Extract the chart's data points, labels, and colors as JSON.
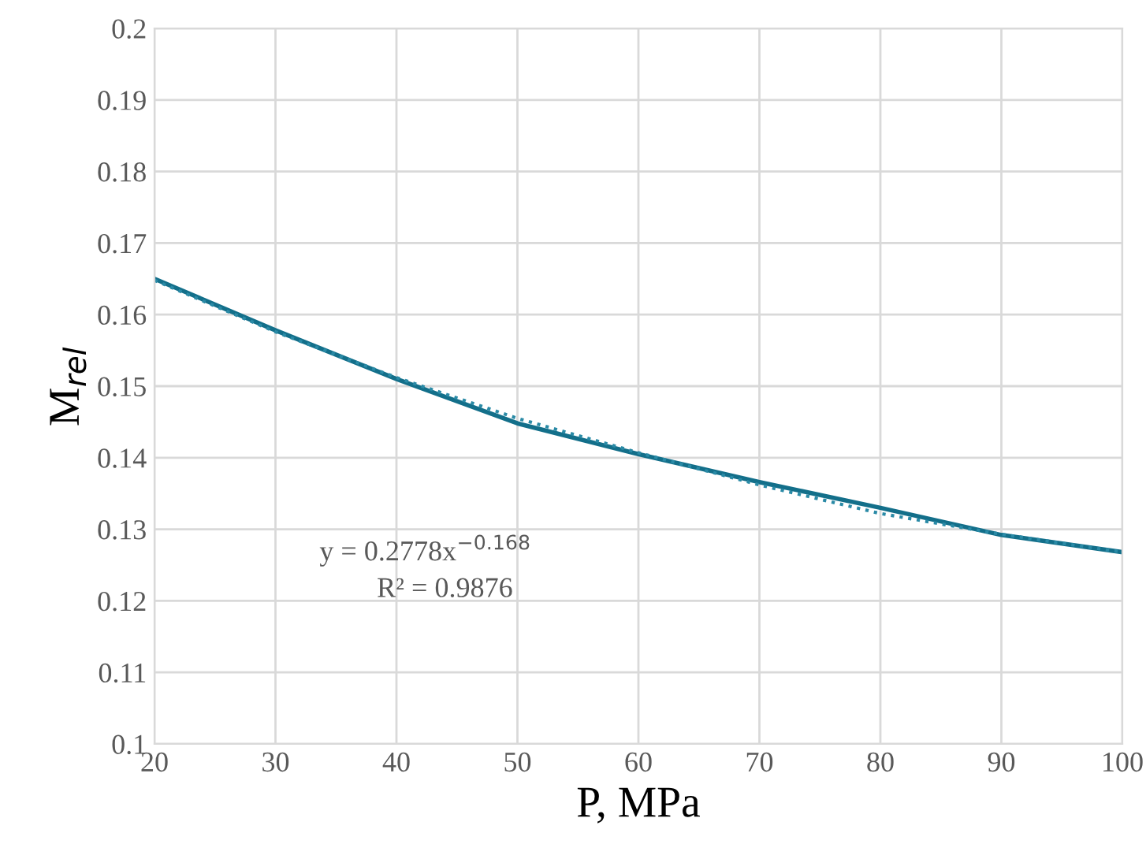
{
  "chart_data": {
    "type": "line",
    "xlabel": "P, MPa",
    "ylabel": "M$_{rel}$",
    "x": [
      20,
      30,
      40,
      50,
      60,
      70,
      80,
      90,
      100
    ],
    "series": [
      {
        "color": "#136f8a",
        "line_style": "solid",
        "values": [
          0.165,
          0.1578,
          0.151,
          0.1448,
          0.1405,
          0.1366,
          0.133,
          0.1292,
          0.1268
        ]
      },
      {
        "color": "#2a8aa6",
        "line_style": "dotted",
        "values": [
          0.1648,
          0.1576,
          0.1512,
          0.1455,
          0.1407,
          0.1362,
          0.1322,
          0.1293,
          0.1268
        ]
      }
    ],
    "annotations": [
      "y = 0.2778x$^{−0.168}$",
      "R² = 0.9876"
    ],
    "xlim": [
      20,
      100
    ],
    "xticks": [
      20,
      30,
      40,
      50,
      60,
      70,
      80,
      90,
      100
    ],
    "ylim": [
      0.1,
      0.2
    ],
    "yticks": [
      0.1,
      0.11,
      0.12,
      0.13,
      0.14,
      0.15,
      0.16,
      0.17,
      0.18,
      0.19,
      0.2
    ],
    "grid": true,
    "marker": "none"
  }
}
